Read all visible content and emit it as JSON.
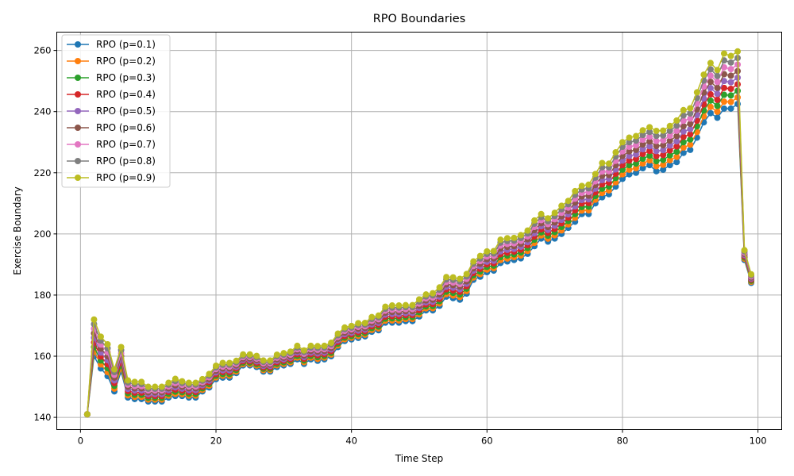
{
  "chart_data": {
    "type": "line",
    "title": "RPO Boundaries",
    "xlabel": "Time Step",
    "ylabel": "Exercise Boundary",
    "xlim": [
      -3.5,
      103.5
    ],
    "ylim": [
      136,
      266
    ],
    "xticks": [
      0,
      20,
      40,
      60,
      80,
      100
    ],
    "yticks": [
      140,
      160,
      180,
      200,
      220,
      240,
      260
    ],
    "grid": true,
    "legend": "top-left",
    "x": [
      1,
      2,
      3,
      4,
      5,
      6,
      7,
      8,
      9,
      10,
      11,
      12,
      13,
      14,
      15,
      16,
      17,
      18,
      19,
      20,
      21,
      22,
      23,
      24,
      25,
      26,
      27,
      28,
      29,
      30,
      31,
      32,
      33,
      34,
      35,
      36,
      37,
      38,
      39,
      40,
      41,
      42,
      43,
      44,
      45,
      46,
      47,
      48,
      49,
      50,
      51,
      52,
      53,
      54,
      55,
      56,
      57,
      58,
      59,
      60,
      61,
      62,
      63,
      64,
      65,
      66,
      67,
      68,
      69,
      70,
      71,
      72,
      73,
      74,
      75,
      76,
      77,
      78,
      79,
      80,
      81,
      82,
      83,
      84,
      85,
      86,
      87,
      88,
      89,
      90,
      91,
      92,
      93,
      94,
      95,
      96,
      97,
      98,
      99
    ],
    "base": [
      141.0,
      160.0,
      156.0,
      153.5,
      148.5,
      155.0,
      146.5,
      146.0,
      146.0,
      145.2,
      145.2,
      145.2,
      146.5,
      147.0,
      147.0,
      146.5,
      146.5,
      148.5,
      149.8,
      152.5,
      153.0,
      153.0,
      154.5,
      157.0,
      157.0,
      156.5,
      155.0,
      155.0,
      156.5,
      157.0,
      157.5,
      159.0,
      157.5,
      159.0,
      158.5,
      159.0,
      160.0,
      163.0,
      165.0,
      165.5,
      166.0,
      166.5,
      168.0,
      168.5,
      171.0,
      171.0,
      171.0,
      171.5,
      171.5,
      173.0,
      175.0,
      175.0,
      176.5,
      179.5,
      179.0,
      178.5,
      180.5,
      185.0,
      186.0,
      187.5,
      188.0,
      190.5,
      191.0,
      191.5,
      192.0,
      193.5,
      196.0,
      198.5,
      197.5,
      198.5,
      200.0,
      202.0,
      204.0,
      206.5,
      206.5,
      210.0,
      212.0,
      213.0,
      215.5,
      218.0,
      219.5,
      220.0,
      221.5,
      222.5,
      220.5,
      221.0,
      222.5,
      223.5,
      226.5,
      227.5,
      231.5,
      236.5,
      239.5,
      238.0,
      241.0,
      241.0,
      242.5,
      191.5,
      184.0
    ],
    "increment": [
      0.0,
      1.5,
      1.3,
      1.3,
      0.9,
      1.0,
      0.7,
      0.7,
      0.7,
      0.6,
      0.6,
      0.6,
      0.6,
      0.7,
      0.6,
      0.6,
      0.6,
      0.5,
      0.55,
      0.55,
      0.6,
      0.6,
      0.5,
      0.45,
      0.45,
      0.45,
      0.45,
      0.45,
      0.5,
      0.5,
      0.5,
      0.55,
      0.55,
      0.55,
      0.6,
      0.55,
      0.55,
      0.55,
      0.55,
      0.55,
      0.6,
      0.55,
      0.6,
      0.6,
      0.65,
      0.7,
      0.7,
      0.65,
      0.65,
      0.7,
      0.65,
      0.7,
      0.75,
      0.8,
      0.85,
      0.85,
      0.8,
      0.75,
      0.85,
      0.85,
      0.8,
      0.95,
      0.95,
      0.9,
      0.95,
      0.95,
      1.05,
      1.0,
      0.95,
      1.05,
      1.15,
      1.1,
      1.25,
      1.15,
      1.2,
      1.2,
      1.4,
      1.25,
      1.4,
      1.5,
      1.5,
      1.5,
      1.55,
      1.55,
      1.65,
      1.6,
      1.6,
      1.7,
      1.75,
      1.7,
      1.85,
      1.95,
      2.05,
      1.95,
      2.25,
      2.15,
      2.15,
      0.4,
      0.35
    ],
    "series_names": [
      "RPO (p=0.1)",
      "RPO (p=0.2)",
      "RPO (p=0.3)",
      "RPO (p=0.4)",
      "RPO (p=0.5)",
      "RPO (p=0.6)",
      "RPO (p=0.7)",
      "RPO (p=0.8)",
      "RPO (p=0.9)"
    ],
    "series_colors": [
      "#1f77b4",
      "#ff7f0e",
      "#2ca02c",
      "#d62728",
      "#9467bd",
      "#8c564b",
      "#e377c2",
      "#7f7f7f",
      "#bcbd22"
    ],
    "marker": "circle"
  }
}
